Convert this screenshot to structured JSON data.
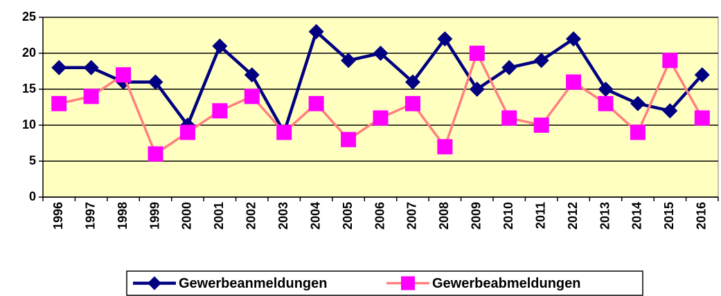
{
  "chart_data": {
    "type": "line",
    "categories": [
      "1996",
      "1997",
      "1998",
      "1999",
      "2000",
      "2001",
      "2002",
      "2003",
      "2004",
      "2005",
      "2006",
      "2007",
      "2008",
      "2009",
      "2010",
      "2011",
      "2012",
      "2013",
      "2014",
      "2015",
      "2016"
    ],
    "series": [
      {
        "name": "Gewerbeanmeldungen",
        "color": "#000080",
        "marker": "diamond",
        "marker_color": "#000080",
        "values": [
          18,
          18,
          16,
          16,
          10,
          21,
          17,
          9,
          23,
          19,
          20,
          16,
          22,
          15,
          18,
          19,
          22,
          15,
          13,
          12,
          17
        ]
      },
      {
        "name": "Gewerbeabmeldungen",
        "color": "#ff8080",
        "marker": "square",
        "marker_color": "#ff00ff",
        "values": [
          13,
          14,
          17,
          6,
          9,
          12,
          14,
          9,
          13,
          8,
          11,
          13,
          7,
          20,
          11,
          10,
          16,
          13,
          9,
          19,
          11
        ]
      }
    ],
    "ylim": [
      0,
      25
    ],
    "yticks": [
      0,
      5,
      10,
      15,
      20,
      25
    ],
    "grid": true,
    "legend": "bottom",
    "plot_background": "#ffffc0"
  }
}
